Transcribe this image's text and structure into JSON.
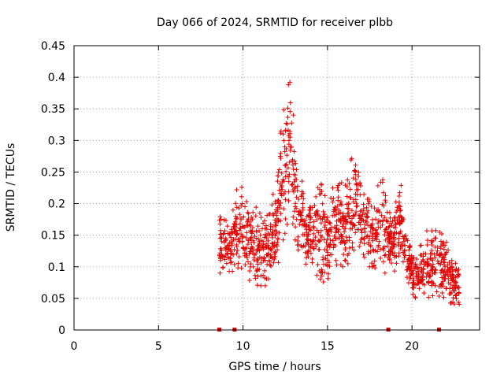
{
  "chart_data": {
    "type": "scatter",
    "title": "Day 066 of 2024, SRMTID for receiver plbb",
    "xlabel": "GPS time / hours",
    "ylabel": "SRMTID / TECUs",
    "xlim": [
      0,
      24
    ],
    "ylim": [
      0,
      0.45
    ],
    "xticks": [
      "0",
      "5",
      "10",
      "15",
      "20"
    ],
    "xtick_values": [
      0,
      5,
      10,
      15,
      20
    ],
    "yticks": [
      "0",
      "0.05",
      "0.1",
      "0.15",
      "0.2",
      "0.25",
      "0.3",
      "0.35",
      "0.4",
      "0.45"
    ],
    "ytick_values": [
      0,
      0.05,
      0.1,
      0.15,
      0.2,
      0.25,
      0.3,
      0.35,
      0.4,
      0.45
    ],
    "grid": true,
    "marker": "+",
    "color": "#e00000",
    "envelope": [
      {
        "t": 8.6,
        "lo": 0.09,
        "hi": 0.18
      },
      {
        "t": 9.2,
        "lo": 0.09,
        "hi": 0.17
      },
      {
        "t": 9.8,
        "lo": 0.1,
        "hi": 0.25
      },
      {
        "t": 10.3,
        "lo": 0.08,
        "hi": 0.21
      },
      {
        "t": 10.9,
        "lo": 0.07,
        "hi": 0.19
      },
      {
        "t": 11.5,
        "lo": 0.07,
        "hi": 0.19
      },
      {
        "t": 12.0,
        "lo": 0.1,
        "hi": 0.24
      },
      {
        "t": 12.4,
        "lo": 0.13,
        "hi": 0.37
      },
      {
        "t": 12.75,
        "lo": 0.14,
        "hi": 0.41
      },
      {
        "t": 13.2,
        "lo": 0.13,
        "hi": 0.27
      },
      {
        "t": 13.8,
        "lo": 0.1,
        "hi": 0.2
      },
      {
        "t": 14.4,
        "lo": 0.07,
        "hi": 0.25
      },
      {
        "t": 15.0,
        "lo": 0.08,
        "hi": 0.2
      },
      {
        "t": 15.5,
        "lo": 0.1,
        "hi": 0.24
      },
      {
        "t": 16.0,
        "lo": 0.1,
        "hi": 0.23
      },
      {
        "t": 16.6,
        "lo": 0.11,
        "hi": 0.29
      },
      {
        "t": 17.2,
        "lo": 0.1,
        "hi": 0.24
      },
      {
        "t": 17.7,
        "lo": 0.1,
        "hi": 0.2
      },
      {
        "t": 18.3,
        "lo": 0.09,
        "hi": 0.26
      },
      {
        "t": 18.8,
        "lo": 0.09,
        "hi": 0.18
      },
      {
        "t": 19.3,
        "lo": 0.1,
        "hi": 0.24
      },
      {
        "t": 19.8,
        "lo": 0.07,
        "hi": 0.16
      },
      {
        "t": 20.2,
        "lo": 0.04,
        "hi": 0.11
      },
      {
        "t": 20.8,
        "lo": 0.05,
        "hi": 0.16
      },
      {
        "t": 21.3,
        "lo": 0.05,
        "hi": 0.17
      },
      {
        "t": 21.9,
        "lo": 0.05,
        "hi": 0.15
      },
      {
        "t": 22.4,
        "lo": 0.04,
        "hi": 0.11
      },
      {
        "t": 22.8,
        "lo": 0.04,
        "hi": 0.1
      }
    ],
    "baseline_markers": [
      8.6,
      9.5,
      18.6,
      21.6
    ]
  }
}
